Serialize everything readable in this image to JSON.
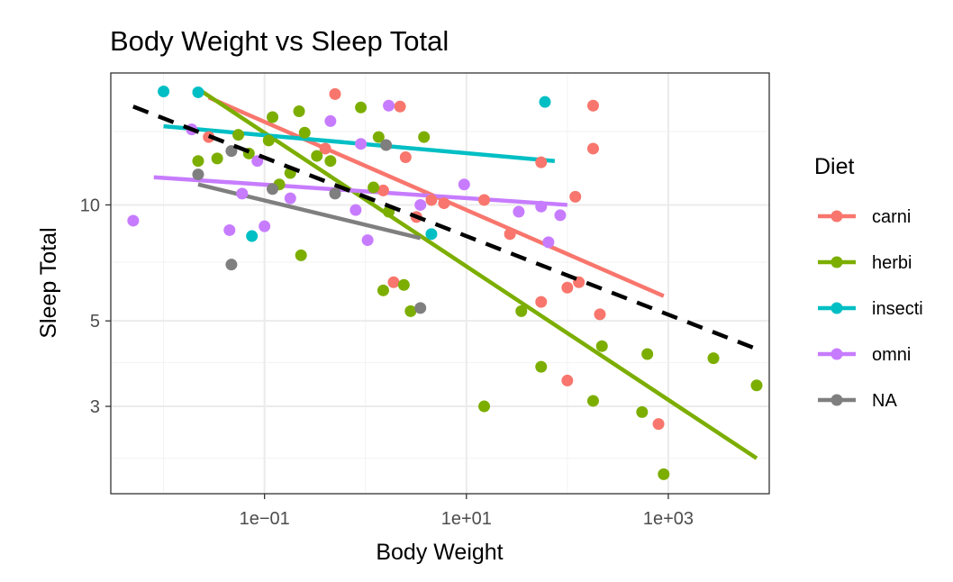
{
  "chart_data": {
    "type": "scatter",
    "title": "Body Weight vs Sleep Total",
    "xlabel": "Body Weight",
    "ylabel": "Sleep Total",
    "x_scale": "log10",
    "y_scale": "log10",
    "xlim": [
      0.003,
      10000
    ],
    "ylim": [
      1.78,
      22
    ],
    "x_ticks": [
      0.1,
      10,
      1000
    ],
    "x_tick_labels": [
      "1e−01",
      "1e+01",
      "1e+03"
    ],
    "y_ticks": [
      3,
      5,
      10
    ],
    "y_tick_labels": [
      "3",
      "5",
      "10"
    ],
    "grid": true,
    "legend_title": "Diet",
    "legend_position": "right",
    "series": [
      {
        "name": "carni",
        "color": "#F8766D",
        "points": [
          [
            0.028,
            15.0
          ],
          [
            0.5,
            19.4
          ],
          [
            2.2,
            18.0
          ],
          [
            0.4,
            14.0
          ],
          [
            1.5,
            10.9
          ],
          [
            2.5,
            13.3
          ],
          [
            3.2,
            9.3
          ],
          [
            6.0,
            10.1
          ],
          [
            15,
            10.3
          ],
          [
            27,
            8.4
          ],
          [
            4.5,
            10.3
          ],
          [
            55,
            12.9
          ],
          [
            120,
            10.5
          ],
          [
            130,
            6.3
          ],
          [
            1.9,
            6.3
          ],
          [
            180,
            18.1
          ],
          [
            180,
            14.0
          ],
          [
            100,
            6.1
          ],
          [
            210,
            5.2
          ],
          [
            55,
            5.6
          ],
          [
            100,
            3.5
          ],
          [
            800,
            2.7
          ]
        ],
        "fit": [
          [
            0.028,
            19.0
          ],
          [
            900,
            5.8
          ]
        ]
      },
      {
        "name": "herbi",
        "color": "#7CAE00",
        "points": [
          [
            0.022,
            13.0
          ],
          [
            0.034,
            13.2
          ],
          [
            0.055,
            15.2
          ],
          [
            0.07,
            13.6
          ],
          [
            0.11,
            14.7
          ],
          [
            0.12,
            16.9
          ],
          [
            0.14,
            11.3
          ],
          [
            0.18,
            12.1
          ],
          [
            0.22,
            17.5
          ],
          [
            0.25,
            15.4
          ],
          [
            0.33,
            13.4
          ],
          [
            0.45,
            13.0
          ],
          [
            0.23,
            7.4
          ],
          [
            0.9,
            17.9
          ],
          [
            1.2,
            11.1
          ],
          [
            1.35,
            15.0
          ],
          [
            1.7,
            9.6
          ],
          [
            1.5,
            6.0
          ],
          [
            3.8,
            15.0
          ],
          [
            2.4,
            6.2
          ],
          [
            2.8,
            5.3
          ],
          [
            35,
            5.3
          ],
          [
            15,
            3.0
          ],
          [
            55,
            3.8
          ],
          [
            220,
            4.3
          ],
          [
            180,
            3.1
          ],
          [
            550,
            2.9
          ],
          [
            620,
            4.1
          ],
          [
            900,
            2.0
          ],
          [
            2800,
            4.0
          ],
          [
            7500,
            3.4
          ]
        ],
        "fit": [
          [
            0.022,
            20.0
          ],
          [
            7500,
            2.2
          ]
        ]
      },
      {
        "name": "insecti",
        "color": "#00BFC4",
        "points": [
          [
            0.01,
            19.7
          ],
          [
            0.022,
            19.6
          ],
          [
            0.075,
            8.3
          ],
          [
            4.5,
            8.4
          ],
          [
            60,
            18.5
          ]
        ],
        "fit": [
          [
            0.01,
            16.0
          ],
          [
            75,
            13.0
          ]
        ]
      },
      {
        "name": "omni",
        "color": "#C77CFF",
        "points": [
          [
            0.005,
            9.1
          ],
          [
            0.019,
            15.7
          ],
          [
            0.045,
            8.6
          ],
          [
            0.06,
            10.7
          ],
          [
            0.085,
            13.0
          ],
          [
            0.1,
            8.8
          ],
          [
            0.18,
            10.4
          ],
          [
            0.45,
            16.5
          ],
          [
            0.8,
            9.7
          ],
          [
            0.9,
            14.4
          ],
          [
            1.05,
            8.1
          ],
          [
            3.5,
            10.0
          ],
          [
            9.5,
            11.3
          ],
          [
            33,
            9.6
          ],
          [
            55,
            9.9
          ],
          [
            65,
            8.0
          ],
          [
            85,
            9.4
          ],
          [
            1.7,
            18.1
          ]
        ],
        "fit": [
          [
            0.008,
            11.8
          ],
          [
            100,
            10.0
          ]
        ]
      },
      {
        "name": "NA",
        "color": "#7F7F7F",
        "points": [
          [
            0.022,
            12.0
          ],
          [
            0.047,
            13.8
          ],
          [
            0.047,
            7.0
          ],
          [
            0.12,
            11.0
          ],
          [
            0.5,
            10.7
          ],
          [
            1.6,
            14.3
          ],
          [
            3.5,
            5.4
          ]
        ],
        "fit": [
          [
            0.022,
            11.3
          ],
          [
            3.5,
            8.2
          ]
        ]
      }
    ],
    "overall_fit": {
      "style": "dashed",
      "color": "#000000",
      "line": [
        [
          0.005,
          18.0
        ],
        [
          8000,
          4.2
        ]
      ]
    }
  }
}
